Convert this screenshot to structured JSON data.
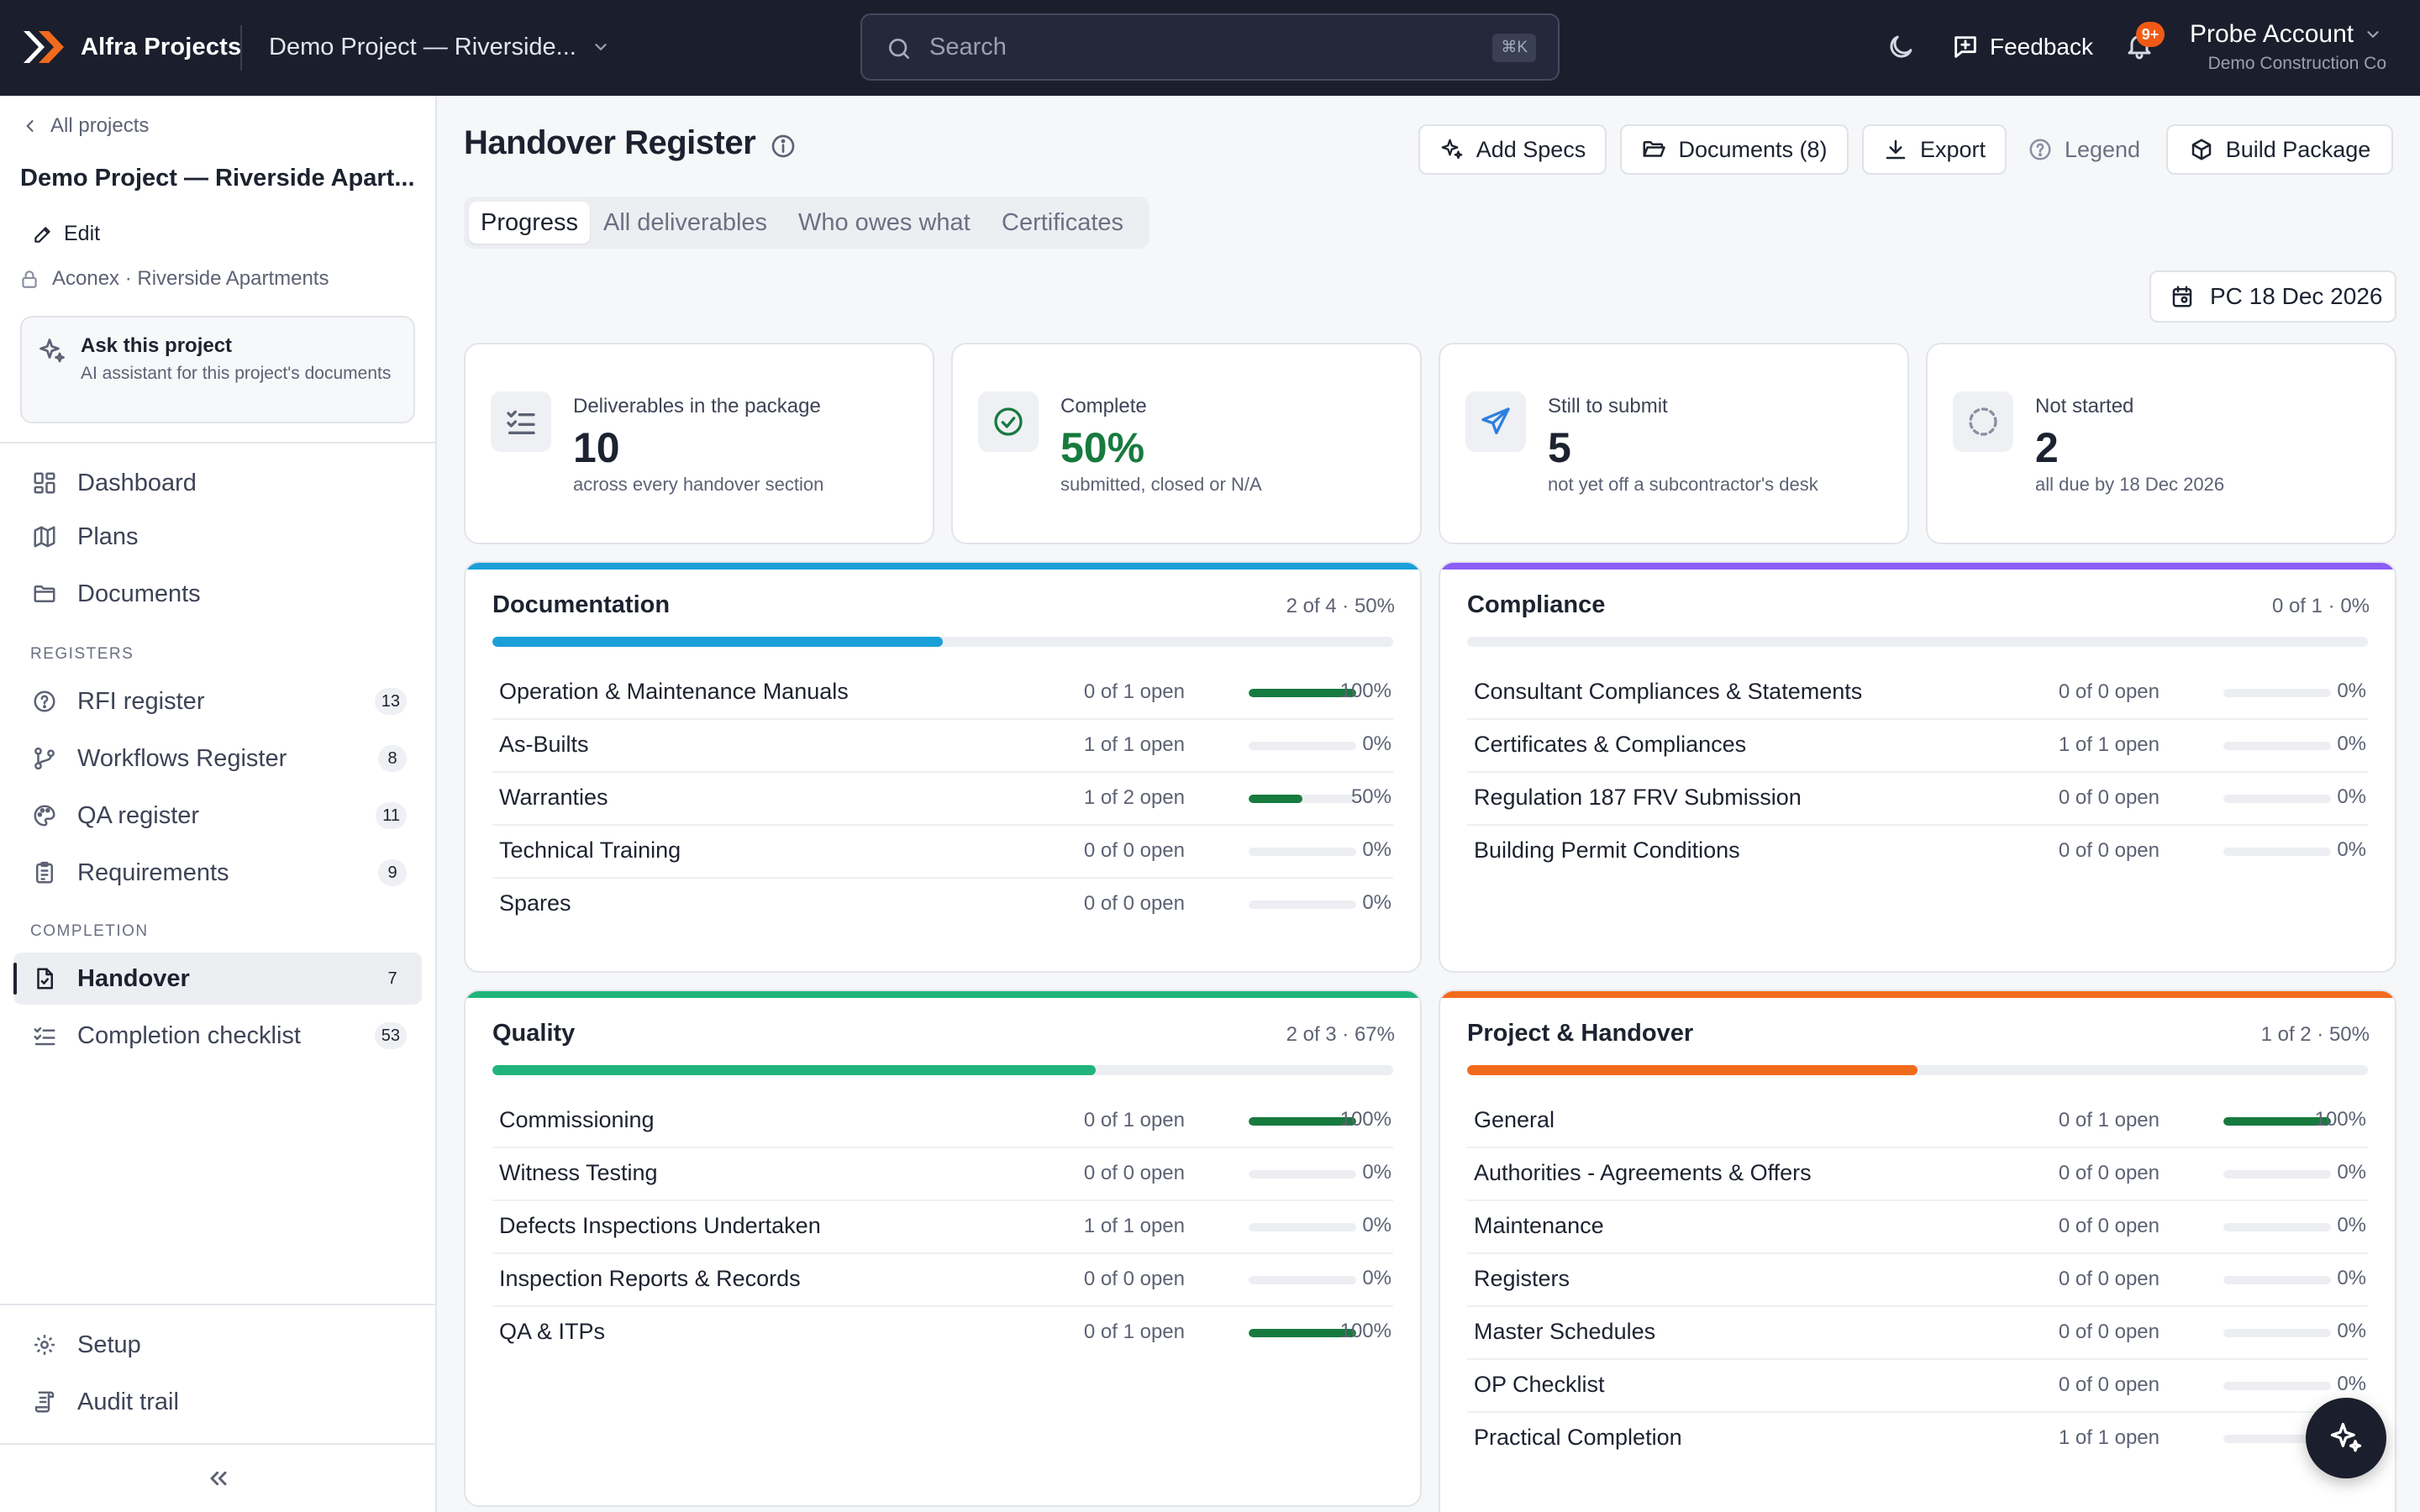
{
  "app": {
    "name": "Alfra Projects",
    "project_switcher": "Demo Project — Riverside...",
    "search_placeholder": "Search",
    "search_shortcut": "⌘K",
    "feedback": "Feedback",
    "notifications_badge": "9+",
    "account_name": "Probe Account",
    "account_org": "Demo Construction Co",
    "brand_color": "#f26b1d"
  },
  "sidebar": {
    "back": "All projects",
    "project_title": "Demo Project — Riverside Apart...",
    "edit": "Edit",
    "source": "Aconex · Riverside Apartments",
    "ask": {
      "title": "Ask this project",
      "subtitle": "AI assistant for this project's documents"
    },
    "nav": [
      {
        "label": "Dashboard",
        "icon": "dashboard-icon"
      },
      {
        "label": "Plans",
        "icon": "map-icon"
      },
      {
        "label": "Documents",
        "icon": "folder-icon"
      }
    ],
    "registers_label": "REGISTERS",
    "registers": [
      {
        "label": "RFI register",
        "badge": "13",
        "icon": "question-icon"
      },
      {
        "label": "Workflows Register",
        "badge": "8",
        "icon": "branch-icon"
      },
      {
        "label": "QA register",
        "badge": "11",
        "icon": "palette-icon"
      },
      {
        "label": "Requirements",
        "badge": "9",
        "icon": "clipboard-icon"
      }
    ],
    "completion_label": "COMPLETION",
    "completion": [
      {
        "label": "Handover",
        "badge": "7",
        "icon": "file-check-icon",
        "active": true
      },
      {
        "label": "Completion checklist",
        "badge": "53",
        "icon": "list-checks-icon"
      }
    ],
    "bottom": [
      {
        "label": "Setup",
        "icon": "gear-icon"
      },
      {
        "label": "Audit trail",
        "icon": "scroll-icon"
      }
    ]
  },
  "main": {
    "title": "Handover Register",
    "actions": {
      "add_specs": "Add Specs",
      "documents": "Documents (8)",
      "export": "Export",
      "legend": "Legend",
      "build_package": "Build Package"
    },
    "tabs": [
      "Progress",
      "All deliverables",
      "Who owes what",
      "Certificates"
    ],
    "active_tab": "Progress",
    "pc_date": "PC 18 Dec 2026",
    "stats": [
      {
        "label": "Deliverables in the package",
        "value": "10",
        "sub": "across every handover section",
        "icon": "list-checks-icon",
        "color": "#1d2230"
      },
      {
        "label": "Complete",
        "value": "50%",
        "sub": "submitted, closed or N/A",
        "icon": "check-circle-icon",
        "color": "#177a3e"
      },
      {
        "label": "Still to submit",
        "value": "5",
        "sub": "not yet off a subcontractor's desk",
        "icon": "send-icon",
        "color": "#1d2230"
      },
      {
        "label": "Not started",
        "value": "2",
        "sub": "all due by 18 Dec 2026",
        "icon": "dashed-circle-icon",
        "color": "#1d2230"
      }
    ],
    "sections": [
      {
        "title": "Documentation",
        "count": "2 of 4 · 50%",
        "progress": 0.5,
        "color": "#1a9fd8",
        "rows": [
          {
            "name": "Operation & Maintenance Manuals",
            "open": "0 of 1 open",
            "pct": "100%",
            "progress": 1.0
          },
          {
            "name": "As-Builts",
            "open": "1 of 1 open",
            "pct": "0%",
            "progress": 0
          },
          {
            "name": "Warranties",
            "open": "1 of 2 open",
            "pct": "50%",
            "progress": 0.5
          },
          {
            "name": "Technical Training",
            "open": "0 of 0 open",
            "pct": "0%",
            "progress": 0
          },
          {
            "name": "Spares",
            "open": "0 of 0 open",
            "pct": "0%",
            "progress": 0
          }
        ]
      },
      {
        "title": "Compliance",
        "count": "0 of 1 · 0%",
        "progress": 0,
        "color": "#8b5cf6",
        "rows": [
          {
            "name": "Consultant Compliances & Statements",
            "open": "0 of 0 open",
            "pct": "0%",
            "progress": 0
          },
          {
            "name": "Certificates & Compliances",
            "open": "1 of 1 open",
            "pct": "0%",
            "progress": 0
          },
          {
            "name": "Regulation 187 FRV Submission",
            "open": "0 of 0 open",
            "pct": "0%",
            "progress": 0
          },
          {
            "name": "Building Permit Conditions",
            "open": "0 of 0 open",
            "pct": "0%",
            "progress": 0
          }
        ]
      },
      {
        "title": "Quality",
        "count": "2 of 3 · 67%",
        "progress": 0.67,
        "color": "#1fb57a",
        "rows": [
          {
            "name": "Commissioning",
            "open": "0 of 1 open",
            "pct": "100%",
            "progress": 1.0
          },
          {
            "name": "Witness Testing",
            "open": "0 of 0 open",
            "pct": "0%",
            "progress": 0
          },
          {
            "name": "Defects Inspections Undertaken",
            "open": "1 of 1 open",
            "pct": "0%",
            "progress": 0
          },
          {
            "name": "Inspection Reports & Records",
            "open": "0 of 0 open",
            "pct": "0%",
            "progress": 0
          },
          {
            "name": "QA & ITPs",
            "open": "0 of 1 open",
            "pct": "100%",
            "progress": 1.0
          }
        ]
      },
      {
        "title": "Project & Handover",
        "count": "1 of 2 · 50%",
        "progress": 0.5,
        "color": "#f26b1d",
        "rows": [
          {
            "name": "General",
            "open": "0 of 1 open",
            "pct": "100%",
            "progress": 1.0
          },
          {
            "name": "Authorities - Agreements & Offers",
            "open": "0 of 0 open",
            "pct": "0%",
            "progress": 0
          },
          {
            "name": "Maintenance",
            "open": "0 of 0 open",
            "pct": "0%",
            "progress": 0
          },
          {
            "name": "Registers",
            "open": "0 of 0 open",
            "pct": "0%",
            "progress": 0
          },
          {
            "name": "Master Schedules",
            "open": "0 of 0 open",
            "pct": "0%",
            "progress": 0
          },
          {
            "name": "OP Checklist",
            "open": "0 of 0 open",
            "pct": "0%",
            "progress": 0
          },
          {
            "name": "Practical Completion",
            "open": "1 of 1 open",
            "pct": "0%",
            "progress": 0
          }
        ]
      }
    ]
  }
}
